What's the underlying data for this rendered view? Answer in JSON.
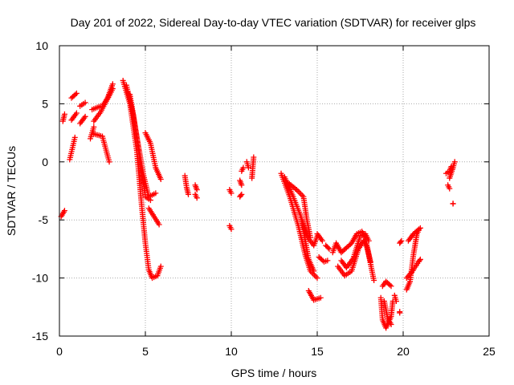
{
  "chart_data": {
    "type": "scatter",
    "title": "Day 201 of 2022, Sidereal Day-to-day VTEC variation (SDTVAR) for receiver glps",
    "xlabel": "GPS time / hours",
    "ylabel": "SDTVAR / TECUs",
    "xlim": [
      0,
      25
    ],
    "ylim": [
      -15,
      10
    ],
    "xticks": [
      0,
      5,
      10,
      15,
      20,
      25
    ],
    "yticks": [
      -15,
      -10,
      -5,
      0,
      5,
      10
    ],
    "grid": true,
    "marker": "+",
    "series": [
      {
        "name": "SDTVAR",
        "color": "#ff0000",
        "segments": [
          [
            [
              0.1,
              -4.7
            ],
            [
              0.3,
              -4.2
            ]
          ],
          [
            [
              0.2,
              3.5
            ],
            [
              0.3,
              4.1
            ]
          ],
          [
            [
              0.6,
              0.2
            ],
            [
              0.9,
              2.1
            ]
          ],
          [
            [
              0.7,
              3.6
            ],
            [
              1.0,
              4.2
            ]
          ],
          [
            [
              0.7,
              5.5
            ],
            [
              1.0,
              5.9
            ]
          ],
          [
            [
              1.2,
              3.3
            ],
            [
              1.5,
              3.9
            ]
          ],
          [
            [
              1.2,
              4.8
            ],
            [
              1.5,
              5.1
            ]
          ],
          [
            [
              1.8,
              2.0
            ],
            [
              2.0,
              3.0
            ]
          ],
          [
            [
              1.9,
              4.5
            ],
            [
              2.4,
              4.8
            ]
          ],
          [
            [
              2.0,
              2.4
            ],
            [
              2.5,
              2.2
            ],
            [
              2.9,
              0.0
            ]
          ],
          [
            [
              2.0,
              3.5
            ],
            [
              2.4,
              4.3
            ],
            [
              2.9,
              5.7
            ],
            [
              3.1,
              6.3
            ]
          ],
          [
            [
              2.5,
              4.8
            ],
            [
              2.8,
              5.5
            ],
            [
              3.1,
              6.7
            ]
          ],
          [
            [
              3.7,
              7.0
            ],
            [
              4.1,
              5.0
            ],
            [
              4.5,
              1.0
            ],
            [
              4.8,
              -4.0
            ],
            [
              5.0,
              -7.0
            ],
            [
              5.2,
              -9.3
            ],
            [
              5.4,
              -10.0
            ],
            [
              5.7,
              -9.8
            ],
            [
              5.9,
              -9.0
            ]
          ],
          [
            [
              3.9,
              6.6
            ],
            [
              4.3,
              4.0
            ],
            [
              4.7,
              0.0
            ],
            [
              5.0,
              -3.0
            ],
            [
              5.3,
              -3.3
            ]
          ],
          [
            [
              4.1,
              5.8
            ],
            [
              4.5,
              2.2
            ],
            [
              4.9,
              -1.2
            ],
            [
              5.2,
              -3.0
            ],
            [
              5.6,
              -2.7
            ]
          ],
          [
            [
              5.0,
              2.5
            ],
            [
              5.3,
              1.6
            ],
            [
              5.6,
              -0.5
            ],
            [
              5.9,
              -1.5
            ]
          ],
          [
            [
              5.2,
              -4.0
            ],
            [
              5.8,
              -5.4
            ]
          ],
          [
            [
              7.3,
              -1.2
            ],
            [
              7.4,
              -2.2
            ],
            [
              7.5,
              -2.8
            ]
          ],
          [
            [
              7.9,
              -2.0
            ],
            [
              8.0,
              -2.4
            ]
          ],
          [
            [
              7.9,
              -2.8
            ],
            [
              8.0,
              -3.1
            ]
          ],
          [
            [
              9.9,
              -2.4
            ],
            [
              10.0,
              -2.7
            ]
          ],
          [
            [
              9.9,
              -5.5
            ],
            [
              10.0,
              -5.8
            ]
          ],
          [
            [
              10.5,
              -1.6
            ],
            [
              10.6,
              -2.0
            ]
          ],
          [
            [
              10.5,
              -3.0
            ],
            [
              10.6,
              -2.8
            ]
          ],
          [
            [
              10.6,
              -0.8
            ],
            [
              10.7,
              -0.5
            ]
          ],
          [
            [
              10.9,
              0.0
            ],
            [
              11.0,
              -0.5
            ]
          ],
          [
            [
              11.2,
              -1.4
            ],
            [
              11.3,
              0.4
            ]
          ],
          [
            [
              12.9,
              -1.0
            ],
            [
              13.4,
              -3.0
            ],
            [
              13.9,
              -5.5
            ],
            [
              14.3,
              -8.0
            ],
            [
              14.6,
              -9.4
            ],
            [
              15.0,
              -10.0
            ]
          ],
          [
            [
              13.1,
              -1.3
            ],
            [
              13.6,
              -3.0
            ],
            [
              14.0,
              -4.5
            ],
            [
              14.4,
              -6.4
            ],
            [
              14.8,
              -7.2
            ],
            [
              15.0,
              -6.4
            ]
          ],
          [
            [
              13.3,
              -1.8
            ],
            [
              13.8,
              -2.4
            ],
            [
              14.2,
              -3.0
            ],
            [
              14.4,
              -5.0
            ],
            [
              14.6,
              -6.5
            ]
          ],
          [
            [
              14.1,
              -5.0
            ],
            [
              14.5,
              -8.4
            ],
            [
              14.8,
              -9.4
            ]
          ],
          [
            [
              14.5,
              -11.1
            ],
            [
              14.8,
              -11.9
            ],
            [
              15.2,
              -11.7
            ]
          ],
          [
            [
              15.0,
              -6.2
            ],
            [
              15.3,
              -6.8
            ]
          ],
          [
            [
              15.1,
              -8.2
            ],
            [
              15.4,
              -8.6
            ],
            [
              15.6,
              -8.5
            ]
          ],
          [
            [
              15.5,
              -7.2
            ],
            [
              15.7,
              -7.5
            ]
          ],
          [
            [
              15.9,
              -7.8
            ],
            [
              16.1,
              -7.0
            ],
            [
              16.4,
              -7.8
            ],
            [
              16.7,
              -7.4
            ],
            [
              17.0,
              -7.0
            ],
            [
              17.3,
              -6.2
            ],
            [
              17.6,
              -6.0
            ],
            [
              17.8,
              -6.5
            ],
            [
              18.0,
              -8.0
            ],
            [
              18.2,
              -9.5
            ],
            [
              18.3,
              -10.2
            ]
          ],
          [
            [
              16.2,
              -9.0
            ],
            [
              16.6,
              -9.8
            ],
            [
              17.0,
              -9.4
            ],
            [
              17.4,
              -7.5
            ],
            [
              17.7,
              -6.8
            ],
            [
              17.9,
              -7.4
            ],
            [
              18.1,
              -8.6
            ]
          ],
          [
            [
              16.4,
              -8.5
            ],
            [
              16.7,
              -9.1
            ],
            [
              17.1,
              -8.3
            ],
            [
              17.5,
              -6.4
            ],
            [
              17.8,
              -6.2
            ],
            [
              18.0,
              -6.8
            ]
          ],
          [
            [
              18.8,
              -10.7
            ],
            [
              19.0,
              -10.3
            ],
            [
              19.3,
              -10.7
            ]
          ],
          [
            [
              18.7,
              -11.7
            ],
            [
              18.8,
              -13.6
            ],
            [
              19.0,
              -14.3
            ],
            [
              19.3,
              -13.3
            ],
            [
              19.4,
              -12.0
            ]
          ],
          [
            [
              18.9,
              -12.0
            ],
            [
              19.1,
              -13.5
            ],
            [
              19.3,
              -14.0
            ]
          ],
          [
            [
              19.5,
              -11.5
            ],
            [
              19.6,
              -12.0
            ]
          ],
          [
            [
              19.8,
              -13.0
            ],
            [
              19.8,
              -12.9
            ]
          ],
          [
            [
              19.8,
              -7.0
            ],
            [
              19.9,
              -6.8
            ]
          ],
          [
            [
              20.2,
              -10.0
            ],
            [
              20.5,
              -9.5
            ],
            [
              20.9,
              -8.6
            ],
            [
              21.0,
              -8.4
            ]
          ],
          [
            [
              20.2,
              -11.0
            ],
            [
              20.4,
              -10.3
            ],
            [
              20.6,
              -8.0
            ],
            [
              20.8,
              -6.2
            ],
            [
              20.9,
              -5.9
            ]
          ],
          [
            [
              20.3,
              -6.8
            ],
            [
              20.6,
              -6.2
            ],
            [
              21.0,
              -5.7
            ]
          ],
          [
            [
              22.5,
              -1.0
            ],
            [
              22.7,
              -0.8
            ],
            [
              22.8,
              -0.4
            ]
          ],
          [
            [
              22.6,
              -2.0
            ],
            [
              22.7,
              -2.3
            ]
          ],
          [
            [
              22.7,
              -1.4
            ],
            [
              22.9,
              -0.5
            ],
            [
              23.0,
              0.0
            ]
          ],
          [
            [
              22.9,
              -3.6
            ],
            [
              22.9,
              -3.6
            ]
          ]
        ]
      }
    ]
  }
}
